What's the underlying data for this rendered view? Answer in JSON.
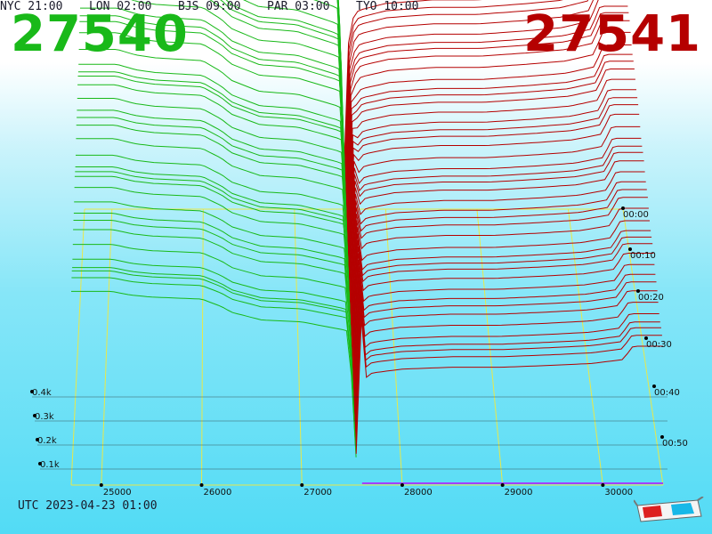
{
  "header": {
    "bid_price": "27540",
    "ask_price": "27541"
  },
  "colors": {
    "bid": "#19b919",
    "ask": "#b50000",
    "grid": "#e8e84a",
    "bottom_bid": "#3c9a3c",
    "bottom_ask": "#a040ff"
  },
  "chart_data": {
    "type": "area",
    "description_of_axes": "3D depth chart: price on x, cumulative size on y, time on z",
    "x_ticks": [
      "25000",
      "26000",
      "27000",
      "28000",
      "29000",
      "30000"
    ],
    "x_tick_values": [
      25000,
      26000,
      27000,
      28000,
      29000,
      30000
    ],
    "y_ticks": [
      "0.1k",
      "0.2k",
      "0.3k",
      "0.4k"
    ],
    "y_tick_values": [
      100,
      200,
      300,
      400
    ],
    "z_ticks": [
      "00:00",
      "00:10",
      "00:20",
      "00:30",
      "00:40",
      "00:50"
    ],
    "xlim": [
      24700,
      30600
    ],
    "ylim": [
      0,
      500
    ],
    "mid_price": [
      27540,
      27541
    ],
    "series": [
      {
        "name": "bid",
        "side": "bid",
        "x": [
          24700,
          25100,
          25300,
          25500,
          26000,
          26200,
          26300,
          26600,
          27000,
          27100,
          27200,
          27300,
          27400,
          27470,
          27540
        ],
        "y": [
          500,
          500,
          490,
          485,
          480,
          460,
          445,
          425,
          420,
          415,
          410,
          405,
          400,
          395,
          40
        ]
      },
      {
        "name": "ask",
        "side": "ask",
        "x": [
          27541,
          27600,
          27700,
          28000,
          28500,
          29000,
          29500,
          29900,
          30200,
          30300,
          30600
        ],
        "y": [
          45,
          270,
          290,
          300,
          305,
          305,
          310,
          315,
          325,
          360,
          360
        ]
      }
    ]
  },
  "footer": {
    "utc_line": "UTC 2023-04-23 01:00",
    "cities": [
      {
        "label": "NYC 21:00"
      },
      {
        "label": "LON 02:00"
      },
      {
        "label": "BJS 09:00"
      },
      {
        "label": "PAR 03:00"
      },
      {
        "label": "TYO 10:00"
      }
    ]
  },
  "icons": {
    "glasses": "3d-glasses-icon"
  }
}
